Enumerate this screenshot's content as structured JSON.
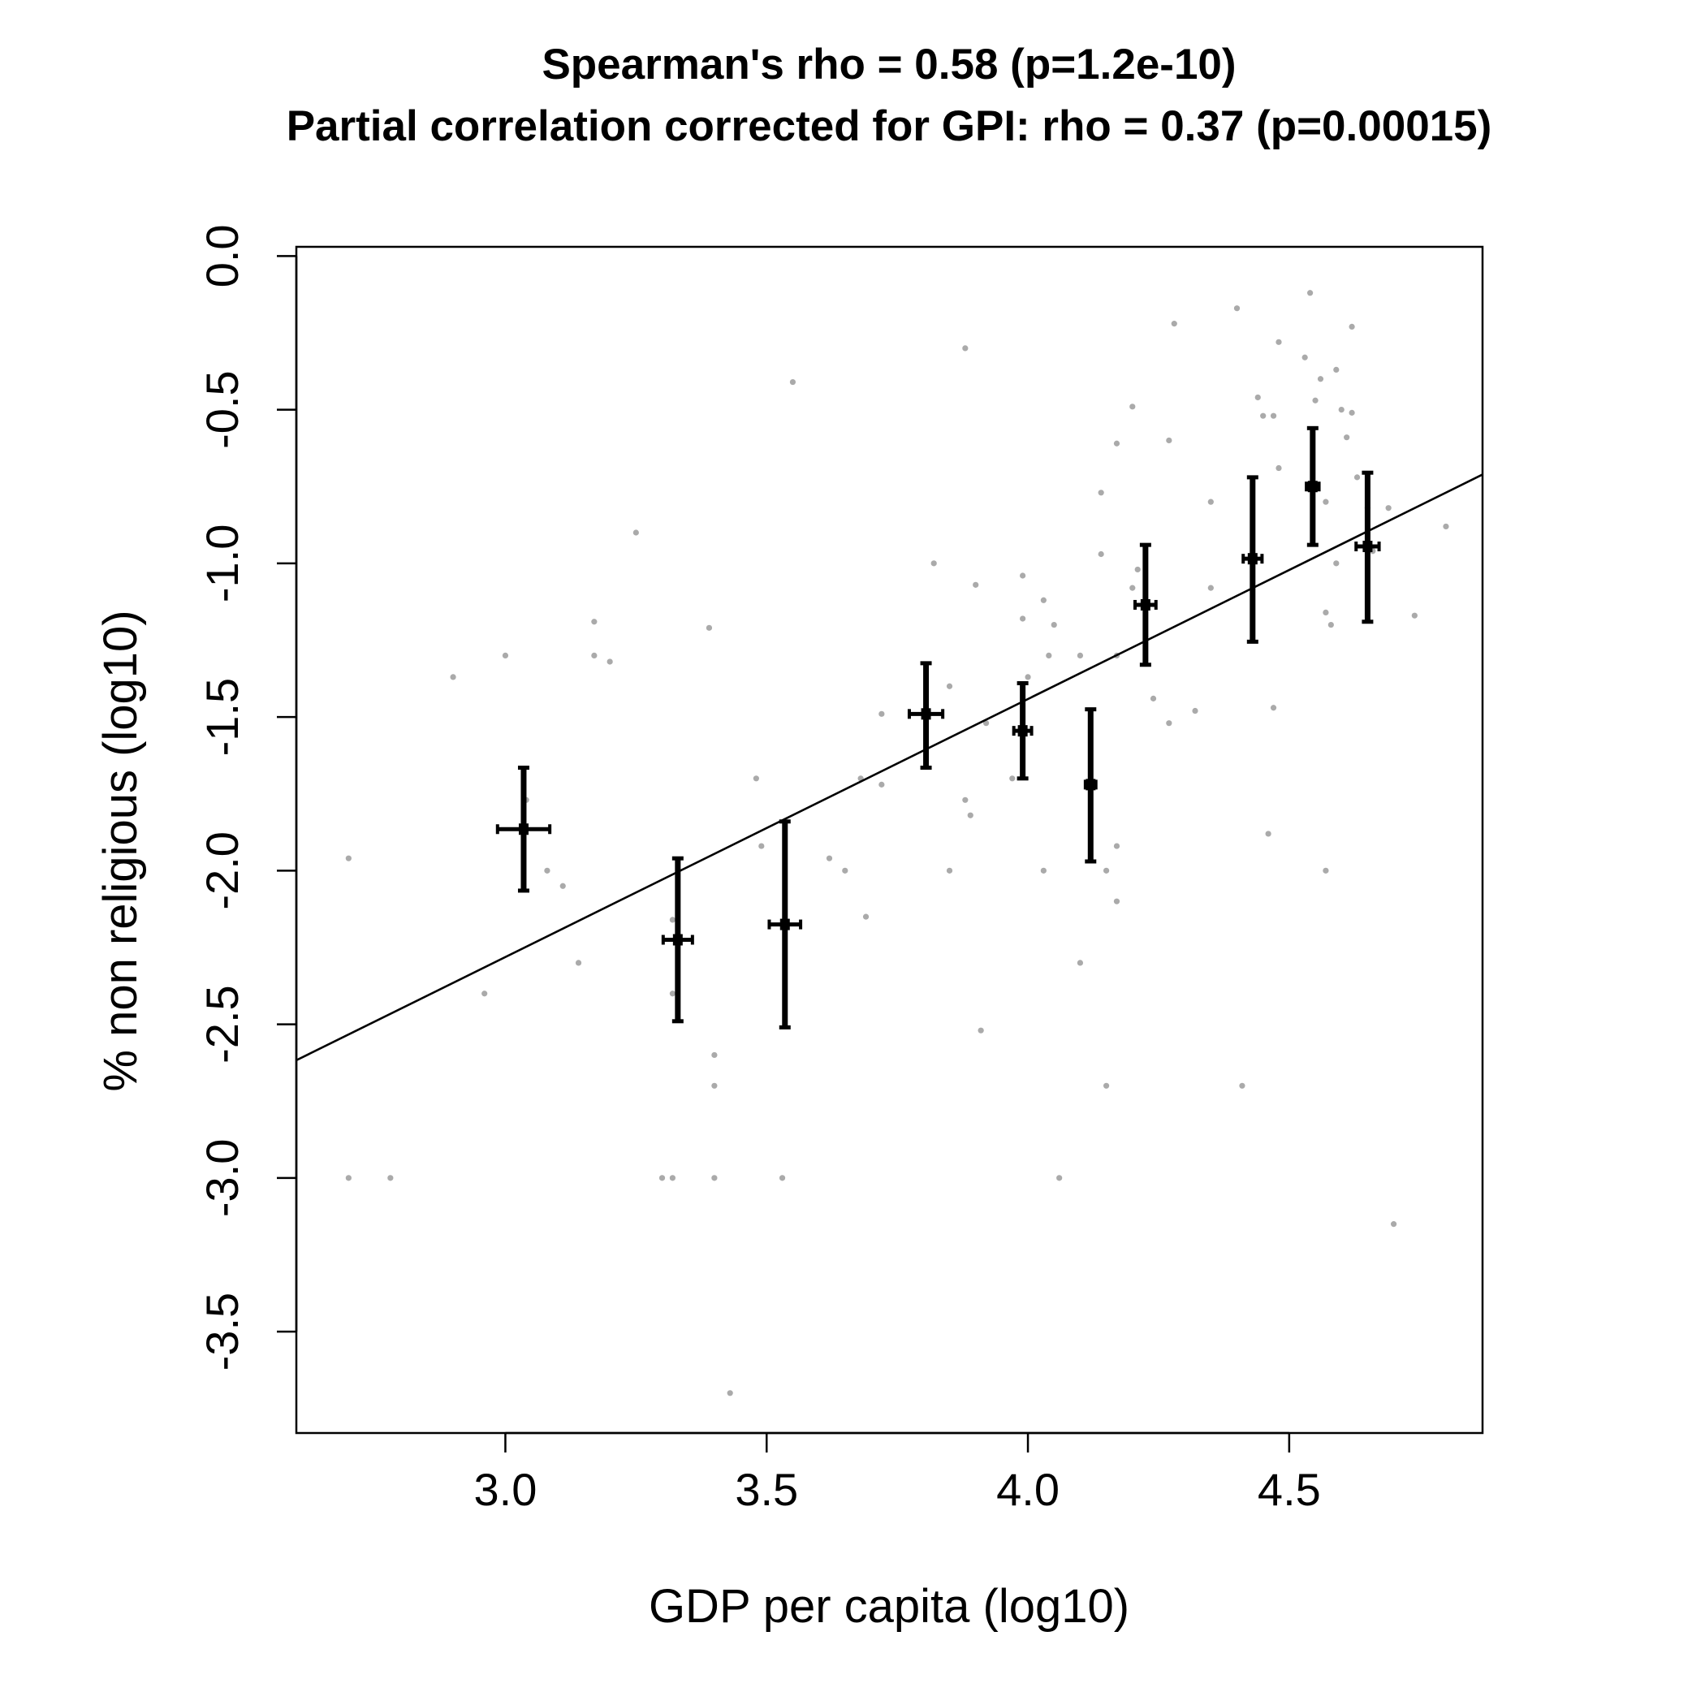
{
  "chart_data": {
    "type": "scatter",
    "title": "Spearman's rho = 0.58 (p=1.2e-10)",
    "subtitle": "Partial correlation corrected for GPI: rho = 0.37 (p=0.00015)",
    "xlabel": "GDP per capita (log10)",
    "ylabel": "% non religious (log10)",
    "xlim": [
      2.6,
      4.87
    ],
    "ylim": [
      -3.83,
      0.03
    ],
    "x_ticks": [
      {
        "value": 3.0,
        "label": "3.0"
      },
      {
        "value": 3.5,
        "label": "3.5"
      },
      {
        "value": 4.0,
        "label": "4.0"
      },
      {
        "value": 4.5,
        "label": "4.5"
      }
    ],
    "y_ticks": [
      {
        "value": 0.0,
        "label": "0.0"
      },
      {
        "value": -0.5,
        "label": "-0.5"
      },
      {
        "value": -1.0,
        "label": "-1.0"
      },
      {
        "value": -1.5,
        "label": "-1.5"
      },
      {
        "value": -2.0,
        "label": "-2.0"
      },
      {
        "value": -2.5,
        "label": "-2.5"
      },
      {
        "value": -3.0,
        "label": "-3.0"
      },
      {
        "value": -3.5,
        "label": "-3.5"
      }
    ],
    "grid": false,
    "colors": {
      "points": "#aaaaaa",
      "bins": "#000000",
      "fit": "#000000"
    },
    "points": [
      {
        "x": 2.7,
        "y": -1.96
      },
      {
        "x": 2.7,
        "y": -3.0
      },
      {
        "x": 2.78,
        "y": -3.0
      },
      {
        "x": 2.9,
        "y": -1.37
      },
      {
        "x": 2.96,
        "y": -2.4
      },
      {
        "x": 3.0,
        "y": -1.3
      },
      {
        "x": 3.04,
        "y": -1.77
      },
      {
        "x": 3.08,
        "y": -2.0
      },
      {
        "x": 3.11,
        "y": -2.05
      },
      {
        "x": 3.14,
        "y": -2.3
      },
      {
        "x": 3.17,
        "y": -1.19
      },
      {
        "x": 3.17,
        "y": -1.3
      },
      {
        "x": 3.2,
        "y": -1.32
      },
      {
        "x": 3.25,
        "y": -0.9
      },
      {
        "x": 3.3,
        "y": -3.0
      },
      {
        "x": 3.32,
        "y": -3.0
      },
      {
        "x": 3.32,
        "y": -2.16
      },
      {
        "x": 3.32,
        "y": -2.4
      },
      {
        "x": 3.39,
        "y": -1.21
      },
      {
        "x": 3.4,
        "y": -2.6
      },
      {
        "x": 3.4,
        "y": -2.7
      },
      {
        "x": 3.4,
        "y": -3.0
      },
      {
        "x": 3.43,
        "y": -3.7
      },
      {
        "x": 3.48,
        "y": -1.7
      },
      {
        "x": 3.49,
        "y": -1.92
      },
      {
        "x": 3.53,
        "y": -3.0
      },
      {
        "x": 3.55,
        "y": -0.41
      },
      {
        "x": 3.62,
        "y": -1.96
      },
      {
        "x": 3.65,
        "y": -2.0
      },
      {
        "x": 3.68,
        "y": -1.7
      },
      {
        "x": 3.69,
        "y": -2.15
      },
      {
        "x": 3.72,
        "y": -1.72
      },
      {
        "x": 3.72,
        "y": -1.49
      },
      {
        "x": 3.82,
        "y": -1.0
      },
      {
        "x": 3.85,
        "y": -1.4
      },
      {
        "x": 3.85,
        "y": -2.0
      },
      {
        "x": 3.88,
        "y": -0.3
      },
      {
        "x": 3.88,
        "y": -1.77
      },
      {
        "x": 3.89,
        "y": -1.82
      },
      {
        "x": 3.9,
        "y": -1.07
      },
      {
        "x": 3.91,
        "y": -2.52
      },
      {
        "x": 3.92,
        "y": -1.52
      },
      {
        "x": 3.97,
        "y": -1.7
      },
      {
        "x": 3.99,
        "y": -1.04
      },
      {
        "x": 3.99,
        "y": -1.18
      },
      {
        "x": 4.0,
        "y": -1.37
      },
      {
        "x": 4.03,
        "y": -1.12
      },
      {
        "x": 4.03,
        "y": -2.0
      },
      {
        "x": 4.04,
        "y": -1.3
      },
      {
        "x": 4.05,
        "y": -1.2
      },
      {
        "x": 4.06,
        "y": -3.0
      },
      {
        "x": 4.1,
        "y": -1.3
      },
      {
        "x": 4.1,
        "y": -2.3
      },
      {
        "x": 4.14,
        "y": -0.77
      },
      {
        "x": 4.14,
        "y": -0.97
      },
      {
        "x": 4.15,
        "y": -2.0
      },
      {
        "x": 4.15,
        "y": -2.7
      },
      {
        "x": 4.17,
        "y": -0.61
      },
      {
        "x": 4.17,
        "y": -1.3
      },
      {
        "x": 4.17,
        "y": -1.92
      },
      {
        "x": 4.17,
        "y": -2.1
      },
      {
        "x": 4.2,
        "y": -0.49
      },
      {
        "x": 4.2,
        "y": -1.08
      },
      {
        "x": 4.21,
        "y": -1.02
      },
      {
        "x": 4.24,
        "y": -1.44
      },
      {
        "x": 4.27,
        "y": -0.6
      },
      {
        "x": 4.27,
        "y": -1.52
      },
      {
        "x": 4.28,
        "y": -0.22
      },
      {
        "x": 4.32,
        "y": -1.48
      },
      {
        "x": 4.35,
        "y": -0.8
      },
      {
        "x": 4.35,
        "y": -1.08
      },
      {
        "x": 4.4,
        "y": -0.17
      },
      {
        "x": 4.41,
        "y": -2.7
      },
      {
        "x": 4.44,
        "y": -0.46
      },
      {
        "x": 4.45,
        "y": -0.52
      },
      {
        "x": 4.46,
        "y": -1.88
      },
      {
        "x": 4.47,
        "y": -0.52
      },
      {
        "x": 4.47,
        "y": -1.47
      },
      {
        "x": 4.48,
        "y": -0.28
      },
      {
        "x": 4.48,
        "y": -0.69
      },
      {
        "x": 4.53,
        "y": -0.33
      },
      {
        "x": 4.54,
        "y": -0.12
      },
      {
        "x": 4.55,
        "y": -0.47
      },
      {
        "x": 4.56,
        "y": -0.4
      },
      {
        "x": 4.57,
        "y": -0.8
      },
      {
        "x": 4.57,
        "y": -1.16
      },
      {
        "x": 4.57,
        "y": -2.0
      },
      {
        "x": 4.58,
        "y": -1.2
      },
      {
        "x": 4.59,
        "y": -0.37
      },
      {
        "x": 4.59,
        "y": -1.0
      },
      {
        "x": 4.6,
        "y": -0.5
      },
      {
        "x": 4.61,
        "y": -0.59
      },
      {
        "x": 4.62,
        "y": -0.23
      },
      {
        "x": 4.62,
        "y": -0.51
      },
      {
        "x": 4.63,
        "y": -0.72
      },
      {
        "x": 4.65,
        "y": -0.82
      },
      {
        "x": 4.66,
        "y": -0.96
      },
      {
        "x": 4.69,
        "y": -0.82
      },
      {
        "x": 4.7,
        "y": -3.15
      },
      {
        "x": 4.74,
        "y": -1.17
      },
      {
        "x": 4.8,
        "y": -0.88
      }
    ],
    "binned_means": [
      {
        "x": 3.035,
        "y": -1.865,
        "xerr": 0.05,
        "ylow": -2.065,
        "yhigh": -1.665
      },
      {
        "x": 3.33,
        "y": -2.225,
        "xerr": 0.028,
        "ylow": -2.49,
        "yhigh": -1.96
      },
      {
        "x": 3.535,
        "y": -2.175,
        "xerr": 0.03,
        "ylow": -2.51,
        "yhigh": -1.84
      },
      {
        "x": 3.805,
        "y": -1.49,
        "xerr": 0.032,
        "ylow": -1.665,
        "yhigh": -1.325
      },
      {
        "x": 3.99,
        "y": -1.545,
        "xerr": 0.017,
        "ylow": -1.7,
        "yhigh": -1.39
      },
      {
        "x": 4.12,
        "y": -1.72,
        "xerr": 0.01,
        "ylow": -1.97,
        "yhigh": -1.475
      },
      {
        "x": 4.225,
        "y": -1.135,
        "xerr": 0.02,
        "ylow": -1.33,
        "yhigh": -0.94
      },
      {
        "x": 4.43,
        "y": -0.985,
        "xerr": 0.018,
        "ylow": -1.255,
        "yhigh": -0.72
      },
      {
        "x": 4.545,
        "y": -0.75,
        "xerr": 0.012,
        "ylow": -0.94,
        "yhigh": -0.56
      },
      {
        "x": 4.65,
        "y": -0.945,
        "xerr": 0.022,
        "ylow": -1.19,
        "yhigh": -0.705
      }
    ],
    "fit_line": {
      "x": [
        2.6,
        4.87
      ],
      "y": [
        -2.617,
        -0.711
      ]
    }
  }
}
